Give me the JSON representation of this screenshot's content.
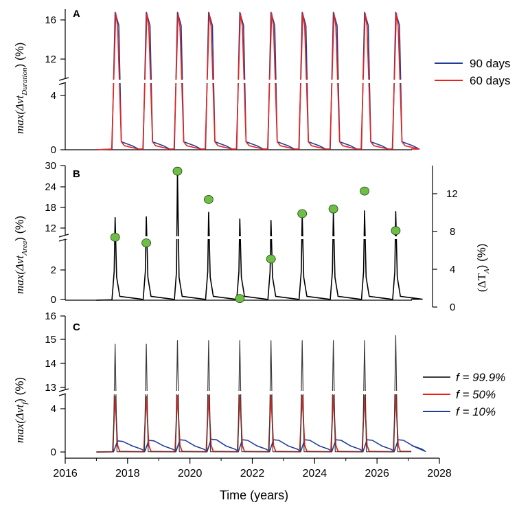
{
  "chart_data": [
    {
      "panel": "A",
      "type": "line",
      "ylabel_main": "max(Δvt",
      "ylabel_sub": "Duration",
      "ylabel_unit": ")  (%)",
      "y_low_ticks": [
        "0",
        "4"
      ],
      "y_high_ticks": [
        "12",
        "16"
      ],
      "y_low_range": [
        0,
        5
      ],
      "y_high_range": [
        10.6,
        17
      ],
      "peak_years": [
        2017.6,
        2018.6,
        2019.6,
        2020.6,
        2021.6,
        2022.6,
        2023.6,
        2024.6,
        2025.6,
        2026.6
      ],
      "series": [
        {
          "name": "90 days",
          "color": "#1f3c99",
          "peak": 16.7,
          "rise_offset": 0.2,
          "tail_start": 0.55
        },
        {
          "name": "60 days",
          "color": "#e8231c",
          "peak": 16.6,
          "rise_offset": 0.1,
          "tail_start": 0.3
        }
      ]
    },
    {
      "panel": "B",
      "type": "line",
      "ylabel_main": "max(Δvt",
      "ylabel_sub": "Area",
      "ylabel_unit": ")  (%)",
      "y_low_ticks": [
        "0",
        "2"
      ],
      "y_high_ticks": [
        "12",
        "18",
        "24",
        "30"
      ],
      "y_low_range": [
        0,
        3.2
      ],
      "y_high_range": [
        10,
        30
      ],
      "y2label_main": "(ΔT",
      "y2label_sub": "A",
      "y2label_unit": ")  (%)",
      "y2_ticks": [
        "0",
        "4",
        "8",
        "12"
      ],
      "y2_range": [
        0,
        15
      ],
      "series": [
        {
          "name": "max dvt area",
          "color": "#000000",
          "peaks": [
            15.3,
            15.5,
            28.2,
            16.8,
            14.9,
            14.5,
            16.3,
            16.8,
            17.2,
            17.0
          ]
        }
      ],
      "scatter": {
        "name": "ΔT_A",
        "color": "#6fbe44",
        "x": [
          2017.6,
          2018.6,
          2019.6,
          2020.6,
          2021.6,
          2022.6,
          2023.6,
          2024.6,
          2025.6,
          2026.6
        ],
        "y": [
          7.4,
          6.8,
          14.4,
          11.4,
          0.9,
          5.1,
          9.9,
          10.4,
          12.3,
          8.1
        ]
      }
    },
    {
      "panel": "C",
      "type": "line",
      "ylabel_main": "max(Δvt",
      "ylabel_sub": "f",
      "ylabel_unit": ")  (%)",
      "y_low_ticks": [
        "0",
        "4"
      ],
      "y_high_ticks": [
        "13",
        "14",
        "15",
        "16"
      ],
      "y_low_range": [
        0,
        5.2
      ],
      "y_high_range": [
        12.95,
        16
      ],
      "series": [
        {
          "name": "f = 99.9%",
          "color": "#3a3a3a",
          "peaks": [
            14.85,
            14.85,
            15.0,
            15.0,
            15.0,
            15.0,
            15.0,
            15.0,
            15.0,
            15.2
          ]
        },
        {
          "name": "f = 50%",
          "color": "#e8231c",
          "peaks": [
            5.0,
            5.0,
            5.1,
            5.1,
            5.1,
            5.1,
            5.1,
            5.1,
            5.1,
            5.2
          ]
        },
        {
          "name": "f = 10%",
          "color": "#1f3c99",
          "peaks": [
            1.0,
            1.05,
            1.1,
            1.15,
            1.1,
            1.1,
            1.1,
            1.1,
            1.1,
            1.1
          ]
        }
      ]
    }
  ],
  "x_axis": {
    "label": "Time (years)",
    "range": [
      2016,
      2028
    ],
    "ticks": [
      "2016",
      "2018",
      "2020",
      "2022",
      "2024",
      "2026",
      "2028"
    ],
    "tick_values": [
      2016,
      2018,
      2020,
      2022,
      2024,
      2026,
      2028
    ]
  },
  "legends": {
    "a": [
      "90 days",
      "60 days"
    ],
    "c": [
      "f = 99.9%",
      "f = 50%",
      "f = 10%"
    ]
  }
}
